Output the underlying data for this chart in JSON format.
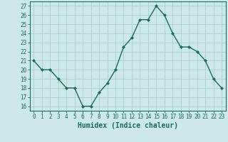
{
  "x": [
    0,
    1,
    2,
    3,
    4,
    5,
    6,
    7,
    8,
    9,
    10,
    11,
    12,
    13,
    14,
    15,
    16,
    17,
    18,
    19,
    20,
    21,
    22,
    23
  ],
  "y": [
    21,
    20,
    20,
    19,
    18,
    18,
    16,
    16,
    17.5,
    18.5,
    20,
    22.5,
    23.5,
    25.5,
    25.5,
    27,
    26,
    24,
    22.5,
    22.5,
    22,
    21,
    19,
    18
  ],
  "line_color": "#1a6b5a",
  "marker": "D",
  "marker_size": 2.0,
  "bg_color": "#cce9e7",
  "grid_color": "#aacfcc",
  "xlabel": "Humidex (Indice chaleur)",
  "xlim": [
    -0.5,
    23.5
  ],
  "ylim": [
    15.5,
    27.5
  ],
  "yticks": [
    16,
    17,
    18,
    19,
    20,
    21,
    22,
    23,
    24,
    25,
    26,
    27
  ],
  "xticks": [
    0,
    1,
    2,
    3,
    4,
    5,
    6,
    7,
    8,
    9,
    10,
    11,
    12,
    13,
    14,
    15,
    16,
    17,
    18,
    19,
    20,
    21,
    22,
    23
  ],
  "tick_label_fontsize": 5.5,
  "xlabel_fontsize": 7.0,
  "axis_color": "#1a6b5a",
  "spine_color": "#1a6b5a",
  "line_width": 1.0
}
